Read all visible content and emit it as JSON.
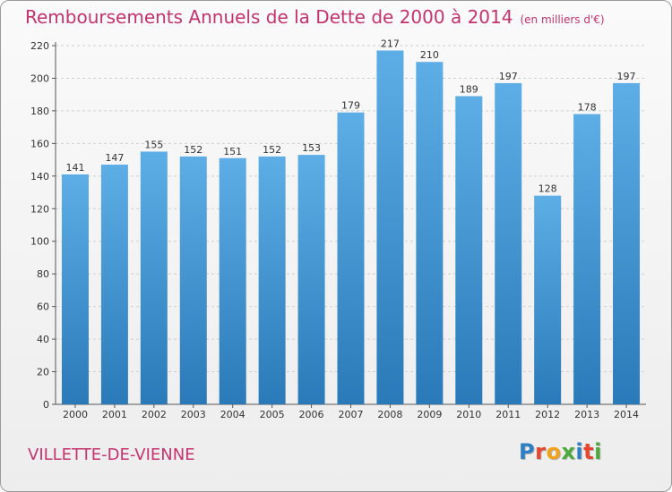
{
  "title": "Remboursements Annuels de la Dette de 2000 à 2014",
  "unit": "(en milliers d'€)",
  "city": "VILLETTE-DE-VIENNE",
  "brand": {
    "letters": [
      "P",
      "r",
      "o",
      "x",
      "i",
      "t",
      "i"
    ],
    "colors": [
      "#2c7fc4",
      "#e8452c",
      "#f2a11a",
      "#4caa3c",
      "#2c7fc4",
      "#e8452c",
      "#4caa3c"
    ]
  },
  "colors": {
    "bar_top": "#5dade6",
    "bar_bottom": "#2a7ab9",
    "title": "#c4336e",
    "grid": "#cfcfcf"
  },
  "chart_data": {
    "type": "bar",
    "categories": [
      "2000",
      "2001",
      "2002",
      "2003",
      "2004",
      "2005",
      "2006",
      "2007",
      "2008",
      "2009",
      "2010",
      "2011",
      "2012",
      "2013",
      "2014"
    ],
    "values": [
      141,
      147,
      155,
      152,
      151,
      152,
      153,
      179,
      217,
      210,
      189,
      197,
      128,
      178,
      197
    ],
    "yticks": [
      0,
      20,
      40,
      60,
      80,
      100,
      120,
      140,
      160,
      180,
      200,
      220
    ],
    "ylim": [
      0,
      220
    ],
    "grid": true,
    "data_labels": true
  }
}
